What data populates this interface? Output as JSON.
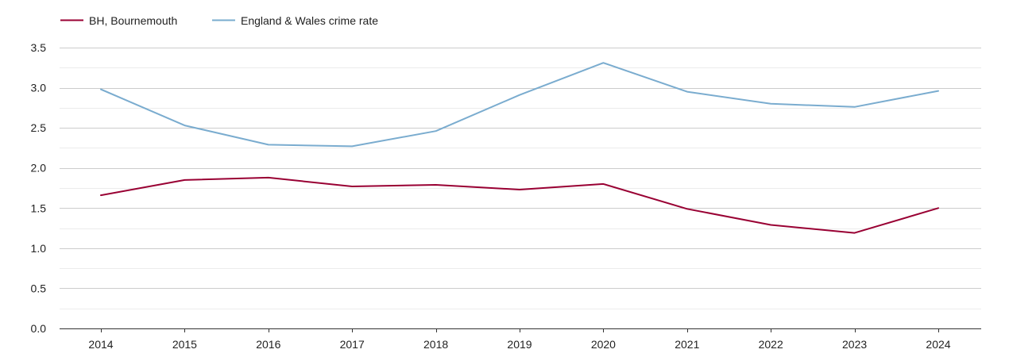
{
  "chart_data": {
    "type": "line",
    "title": "",
    "xlabel": "",
    "ylabel": "",
    "x": [
      "2014",
      "2015",
      "2016",
      "2017",
      "2018",
      "2019",
      "2020",
      "2021",
      "2022",
      "2023",
      "2024"
    ],
    "ylim": [
      0,
      3.5
    ],
    "yticks": [
      "0.0",
      "0.5",
      "1.0",
      "1.5",
      "2.0",
      "2.5",
      "3.0",
      "3.5"
    ],
    "grid": true,
    "legend_position": "top-left",
    "series": [
      {
        "name": "BH, Bournemouth",
        "color": "#990033",
        "values": [
          1.66,
          1.85,
          1.88,
          1.77,
          1.79,
          1.73,
          1.8,
          1.49,
          1.29,
          1.19,
          1.5
        ]
      },
      {
        "name": "England & Wales crime rate",
        "color": "#7aaccf",
        "values": [
          2.98,
          2.53,
          2.29,
          2.27,
          2.46,
          2.91,
          3.31,
          2.95,
          2.8,
          2.76,
          2.96
        ]
      }
    ]
  }
}
